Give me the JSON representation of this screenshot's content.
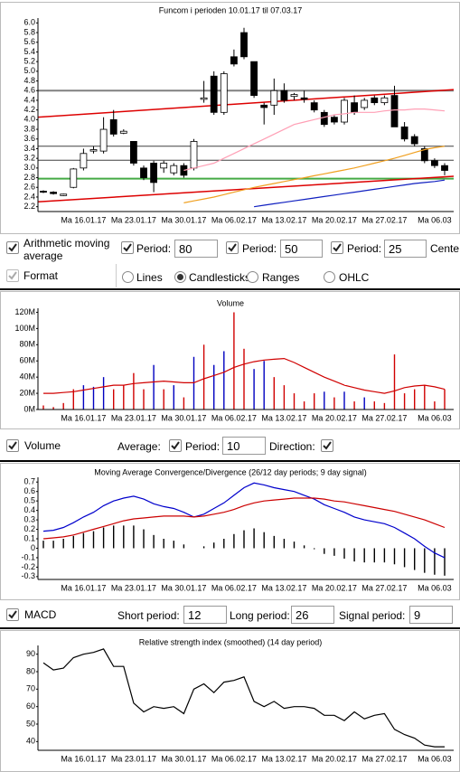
{
  "chart_data": [
    {
      "type": "candlestick",
      "title": "Funcom i perioden 10.01.17 til 07.03.17",
      "categories": [
        null,
        null,
        null,
        null,
        "Ma 16.01.17",
        null,
        null,
        null,
        null,
        "Ma 23.01.17",
        null,
        null,
        null,
        null,
        "Ma 30.01.17",
        null,
        null,
        null,
        null,
        "Ma 06.02.17",
        null,
        null,
        null,
        null,
        "Ma 13.02.17",
        null,
        null,
        null,
        null,
        "Ma 20.02.17",
        null,
        null,
        null,
        null,
        "Ma 27.02.17",
        null,
        null,
        null,
        null,
        "Ma 06.03",
        null
      ],
      "ylim": [
        2.1,
        6.1
      ],
      "yticks": [
        2.2,
        2.4,
        2.6,
        2.8,
        {
          "value": 3,
          "label": "3.0"
        },
        3.2,
        3.4,
        3.6,
        3.8,
        {
          "value": 4,
          "label": "4.0"
        },
        4.2,
        4.4,
        4.6,
        4.8,
        {
          "value": 5,
          "label": "5.0"
        },
        5.2,
        5.4,
        5.6,
        5.8,
        {
          "value": 6,
          "label": "6.0"
        }
      ],
      "hlines": [
        {
          "value": 4.6,
          "color": "#808080",
          "width": 2
        },
        {
          "value": 3.45,
          "color": "#404040",
          "width": 1
        },
        {
          "value": 3.16,
          "color": "#404040",
          "width": 1
        },
        {
          "value": 2.78,
          "color": "#44aa44",
          "width": 2
        }
      ],
      "trendlines": [
        {
          "start": 4.05,
          "end": 4.62,
          "color": "#dd0000"
        },
        {
          "start": 2.3,
          "end": 2.83,
          "color": "#dd0000"
        }
      ],
      "series": [
        {
          "type": "candlestick",
          "up_color": "#ffffff",
          "down_color": "#000000",
          "open": [
            2.52,
            2.5,
            2.43,
            2.6,
            3.0,
            3.35,
            3.35,
            4.0,
            3.72,
            3.55,
            3.0,
            3.1,
            3.0,
            2.9,
            3.05,
            3.0,
            4.42,
            4.9,
            4.15,
            5.3,
            5.8,
            5.2,
            4.3,
            4.3,
            4.6,
            4.48,
            4.45,
            4.35,
            4.15,
            4.05,
            3.95,
            4.35,
            4.25,
            4.45,
            4.35,
            4.5,
            3.85,
            3.65,
            3.4,
            3.15,
            3.05
          ],
          "high": [
            2.54,
            2.52,
            2.47,
            3.0,
            3.4,
            3.45,
            4.05,
            4.2,
            3.8,
            3.55,
            3.05,
            3.15,
            3.15,
            3.1,
            3.1,
            3.6,
            4.8,
            5.0,
            5.0,
            5.45,
            5.9,
            5.2,
            4.35,
            4.85,
            4.75,
            4.55,
            4.6,
            4.4,
            4.2,
            4.1,
            4.45,
            4.5,
            4.45,
            4.5,
            4.5,
            4.7,
            3.95,
            3.7,
            3.45,
            3.2,
            3.1
          ],
          "low": [
            2.48,
            2.45,
            2.42,
            2.58,
            2.95,
            3.3,
            3.3,
            3.65,
            3.7,
            3.05,
            2.75,
            2.5,
            2.9,
            2.85,
            2.8,
            2.95,
            4.35,
            4.1,
            4.1,
            5.1,
            5.25,
            4.45,
            3.9,
            4.1,
            4.35,
            4.4,
            4.35,
            4.15,
            3.85,
            3.9,
            3.9,
            4.1,
            4.2,
            4.3,
            4.3,
            3.85,
            3.55,
            3.45,
            3.1,
            3.0,
            2.85
          ],
          "close": [
            2.5,
            2.47,
            2.46,
            2.98,
            3.3,
            3.38,
            3.8,
            3.7,
            3.76,
            3.1,
            2.8,
            2.7,
            3.1,
            3.05,
            2.85,
            3.55,
            4.45,
            4.15,
            4.95,
            5.15,
            5.3,
            4.5,
            4.25,
            4.6,
            4.4,
            4.52,
            4.42,
            4.2,
            3.9,
            3.95,
            4.4,
            4.15,
            4.4,
            4.35,
            4.45,
            3.85,
            3.6,
            3.5,
            3.15,
            3.05,
            2.95
          ]
        },
        {
          "type": "line",
          "color": "#ff9fb5",
          "values": [
            null,
            null,
            null,
            null,
            null,
            null,
            null,
            null,
            null,
            null,
            null,
            null,
            null,
            null,
            2.95,
            3.0,
            3.05,
            3.1,
            3.2,
            3.3,
            3.4,
            3.5,
            3.6,
            3.7,
            3.8,
            3.9,
            3.95,
            4.0,
            4.05,
            4.1,
            4.12,
            4.15,
            4.15,
            4.15,
            4.18,
            4.2,
            4.2,
            4.22,
            4.22,
            4.2,
            4.18
          ]
        },
        {
          "type": "line",
          "color": "#f0a020",
          "values": [
            null,
            null,
            null,
            null,
            null,
            null,
            null,
            null,
            null,
            null,
            null,
            null,
            null,
            null,
            2.28,
            2.32,
            2.36,
            2.4,
            2.45,
            2.5,
            2.55,
            2.6,
            2.64,
            2.68,
            2.72,
            2.76,
            2.8,
            2.84,
            2.88,
            2.92,
            2.96,
            3.0,
            3.05,
            3.1,
            3.15,
            3.2,
            3.26,
            3.32,
            3.38,
            3.42,
            3.45
          ]
        },
        {
          "type": "line",
          "color": "#1020c0",
          "values": [
            null,
            null,
            null,
            null,
            null,
            null,
            null,
            null,
            null,
            null,
            null,
            null,
            null,
            null,
            null,
            null,
            null,
            null,
            null,
            null,
            null,
            2.2,
            2.23,
            2.26,
            2.29,
            2.32,
            2.35,
            2.38,
            2.41,
            2.44,
            2.47,
            2.5,
            2.53,
            2.56,
            2.59,
            2.62,
            2.65,
            2.68,
            2.7,
            2.72,
            2.75
          ]
        }
      ]
    },
    {
      "type": "bar",
      "title": "Volume",
      "categories": [
        null,
        null,
        null,
        null,
        "Ma 16.01.17",
        null,
        null,
        null,
        null,
        "Ma 23.01.17",
        null,
        null,
        null,
        null,
        "Ma 30.01.17",
        null,
        null,
        null,
        null,
        "Ma 06.02.17",
        null,
        null,
        null,
        null,
        "Ma 13.02.17",
        null,
        null,
        null,
        null,
        "Ma 20.02.17",
        null,
        null,
        null,
        null,
        "Ma 27.02.17",
        null,
        null,
        null,
        null,
        "Ma 06.03",
        null
      ],
      "ylim": [
        0,
        125
      ],
      "yticks": [
        {
          "value": 0,
          "label": "0M"
        },
        {
          "value": 20,
          "label": "20M"
        },
        {
          "value": 40,
          "label": "40M"
        },
        {
          "value": 60,
          "label": "60M"
        },
        {
          "value": 80,
          "label": "80M"
        },
        {
          "value": 100,
          "label": "100M"
        },
        {
          "value": 120,
          "label": "120M"
        }
      ],
      "series": [
        {
          "type": "bar",
          "values": [
            5,
            3,
            8,
            25,
            30,
            28,
            40,
            25,
            30,
            45,
            25,
            55,
            25,
            30,
            15,
            65,
            80,
            55,
            72,
            120,
            75,
            50,
            60,
            40,
            30,
            20,
            10,
            20,
            22,
            15,
            22,
            10,
            15,
            10,
            8,
            68,
            20,
            25,
            30,
            10,
            25
          ],
          "colors": [
            "#d00000",
            "#d00000",
            "#d00000",
            "#d00000",
            "#0000c0",
            "#0000c0",
            "#0000c0",
            "#d00000",
            "#d00000",
            "#d00000",
            "#d00000",
            "#0000c0",
            "#d00000",
            "#0000c0",
            "#d00000",
            "#0000c0",
            "#d00000",
            "#0000c0",
            "#0000c0",
            "#d00000",
            "#d00000",
            "#0000c0",
            "#0000c0",
            "#d00000",
            "#d00000",
            "#d00000",
            "#d00000",
            "#d00000",
            "#0000c0",
            "#d00000",
            "#0000c0",
            "#d00000",
            "#0000c0",
            "#d00000",
            "#d00000",
            "#d00000",
            "#d00000",
            "#d00000",
            "#d00000",
            "#d00000",
            "#d00000"
          ]
        },
        {
          "type": "line",
          "color": "#d00000",
          "values": [
            20,
            20,
            21,
            22,
            24,
            26,
            28,
            30,
            30,
            32,
            33,
            34,
            35,
            34,
            33,
            33,
            38,
            42,
            46,
            52,
            56,
            59,
            61,
            62,
            63,
            58,
            52,
            46,
            40,
            35,
            30,
            27,
            24,
            22,
            20,
            23,
            27,
            29,
            30,
            28,
            25
          ]
        }
      ]
    },
    {
      "type": "bar",
      "title": "Moving Average Convergence/Divergence (26/12 day periods; 9 day signal)",
      "categories": [
        null,
        null,
        null,
        null,
        "Ma 16.01.17",
        null,
        null,
        null,
        null,
        "Ma 23.01.17",
        null,
        null,
        null,
        null,
        "Ma 30.01.17",
        null,
        null,
        null,
        null,
        "Ma 06.02.17",
        null,
        null,
        null,
        null,
        "Ma 13.02.17",
        null,
        null,
        null,
        null,
        "Ma 20.02.17",
        null,
        null,
        null,
        null,
        "Ma 27.02.17",
        null,
        null,
        null,
        null,
        "Ma 06.03",
        null
      ],
      "ylim": [
        -0.33,
        0.75
      ],
      "yticks": [
        0.7,
        0.6,
        0.5,
        0.4,
        0.3,
        0.2,
        0.1,
        0,
        -0.1,
        -0.2,
        -0.3
      ],
      "series": [
        {
          "type": "bar",
          "color": "#000000",
          "values": [
            0.08,
            0.08,
            0.1,
            0.13,
            0.16,
            0.18,
            0.22,
            0.24,
            0.24,
            0.24,
            0.2,
            0.14,
            0.1,
            0.08,
            0.04,
            0,
            0.02,
            0.06,
            0.1,
            0.15,
            0.19,
            0.21,
            0.17,
            0.13,
            0.1,
            0.07,
            0.03,
            -0.01,
            -0.06,
            -0.08,
            -0.11,
            -0.14,
            -0.15,
            -0.15,
            -0.15,
            -0.17,
            -0.2,
            -0.23,
            -0.26,
            -0.28,
            -0.29
          ]
        },
        {
          "type": "line",
          "color": "#0000cc",
          "values": [
            0.18,
            0.19,
            0.22,
            0.27,
            0.33,
            0.38,
            0.45,
            0.5,
            0.53,
            0.55,
            0.52,
            0.47,
            0.44,
            0.42,
            0.38,
            0.33,
            0.36,
            0.42,
            0.48,
            0.56,
            0.64,
            0.69,
            0.67,
            0.64,
            0.62,
            0.6,
            0.56,
            0.52,
            0.46,
            0.42,
            0.38,
            0.33,
            0.3,
            0.28,
            0.26,
            0.22,
            0.16,
            0.1,
            0.02,
            -0.05,
            -0.1
          ]
        },
        {
          "type": "line",
          "color": "#cc0000",
          "values": [
            0.1,
            0.11,
            0.12,
            0.14,
            0.17,
            0.2,
            0.23,
            0.26,
            0.29,
            0.31,
            0.32,
            0.33,
            0.34,
            0.34,
            0.34,
            0.33,
            0.34,
            0.36,
            0.38,
            0.41,
            0.45,
            0.48,
            0.5,
            0.51,
            0.52,
            0.53,
            0.53,
            0.53,
            0.52,
            0.5,
            0.49,
            0.47,
            0.45,
            0.43,
            0.41,
            0.39,
            0.36,
            0.33,
            0.3,
            0.26,
            0.22
          ]
        }
      ]
    },
    {
      "type": "line",
      "title": "Relative strength index (smoothed) (14 day period)",
      "categories": [
        null,
        null,
        null,
        null,
        "Ma 16.01.17",
        null,
        null,
        null,
        null,
        "Ma 23.01.17",
        null,
        null,
        null,
        null,
        "Ma 30.01.17",
        null,
        null,
        null,
        null,
        "Ma 06.02.17",
        null,
        null,
        null,
        null,
        "Ma 13.02.17",
        null,
        null,
        null,
        null,
        "Ma 20.02.17",
        null,
        null,
        null,
        null,
        "Ma 27.02.17",
        null,
        null,
        null,
        null,
        "Ma 06.03",
        null
      ],
      "ylim": [
        35,
        95
      ],
      "yticks": [
        40,
        50,
        60,
        70,
        80,
        90
      ],
      "series": [
        {
          "type": "line",
          "color": "#000000",
          "values": [
            85,
            81,
            82,
            88,
            90,
            91,
            93,
            83,
            83,
            62,
            57,
            60,
            59,
            60,
            56,
            70,
            73,
            68,
            74,
            75,
            77,
            63,
            60,
            63,
            59,
            60,
            60,
            59,
            55,
            55,
            52,
            57,
            53,
            55,
            56,
            47,
            44,
            42,
            38,
            37,
            37
          ]
        }
      ]
    }
  ],
  "controls": {
    "ma": {
      "label": "Arithmetic moving average",
      "periods": [
        {
          "label": "Period:",
          "value": 80
        },
        {
          "label": "Period:",
          "value": 50
        },
        {
          "label": "Period:",
          "value": 25
        }
      ],
      "center_label": "Cente"
    },
    "format": {
      "label": "Format",
      "options": [
        "Lines",
        "Candlesticks",
        "Ranges",
        "OHLC"
      ],
      "selected": "Candlesticks"
    },
    "volume": {
      "label": "Volume",
      "average_label": "Average:",
      "period_label": "Period:",
      "period": 10,
      "direction_label": "Direction:"
    },
    "macd": {
      "label": "MACD",
      "short_label": "Short period:",
      "short": 12,
      "long_label": "Long period:",
      "long": 26,
      "signal_label": "Signal period:",
      "signal": 9
    }
  }
}
